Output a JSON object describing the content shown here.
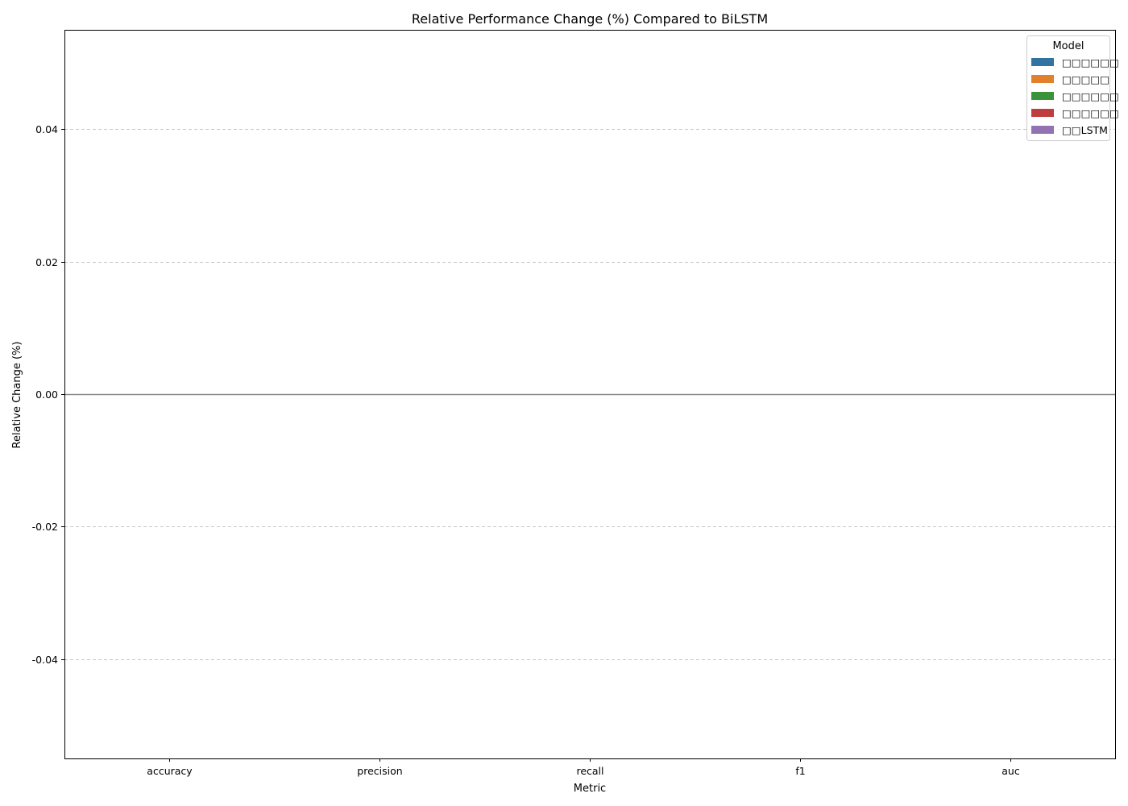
{
  "chart_data": {
    "type": "bar",
    "title": "Relative Performance Change (%) Compared to BiLSTM",
    "xlabel": "Metric",
    "ylabel": "Relative Change (%)",
    "categories": [
      "accuracy",
      "precision",
      "recall",
      "f1",
      "auc"
    ],
    "ylim": [
      -0.055,
      0.055
    ],
    "yticks": [
      -0.04,
      -0.02,
      0.0,
      0.02,
      0.04
    ],
    "ytick_labels": [
      "-0.04",
      "-0.02",
      "0.00",
      "0.02",
      "0.04"
    ],
    "grid": true,
    "baseline": 0,
    "legend": {
      "title": "Model",
      "placement": "top-right"
    },
    "series": [
      {
        "name": "□□□□□□",
        "color": "#3274a1",
        "values": [
          0,
          0,
          0,
          0,
          0
        ]
      },
      {
        "name": "□□□□□",
        "color": "#e1812c",
        "values": [
          0,
          0,
          0,
          0,
          0
        ]
      },
      {
        "name": "□□□□□□",
        "color": "#3a923a",
        "values": [
          0,
          0,
          0,
          0,
          0
        ]
      },
      {
        "name": "□□□□□□",
        "color": "#c03d3e",
        "values": [
          0,
          0,
          0,
          0,
          0
        ]
      },
      {
        "name": "□□LSTM",
        "color": "#9372b2",
        "values": [
          0,
          0,
          0,
          0,
          0
        ]
      }
    ]
  }
}
